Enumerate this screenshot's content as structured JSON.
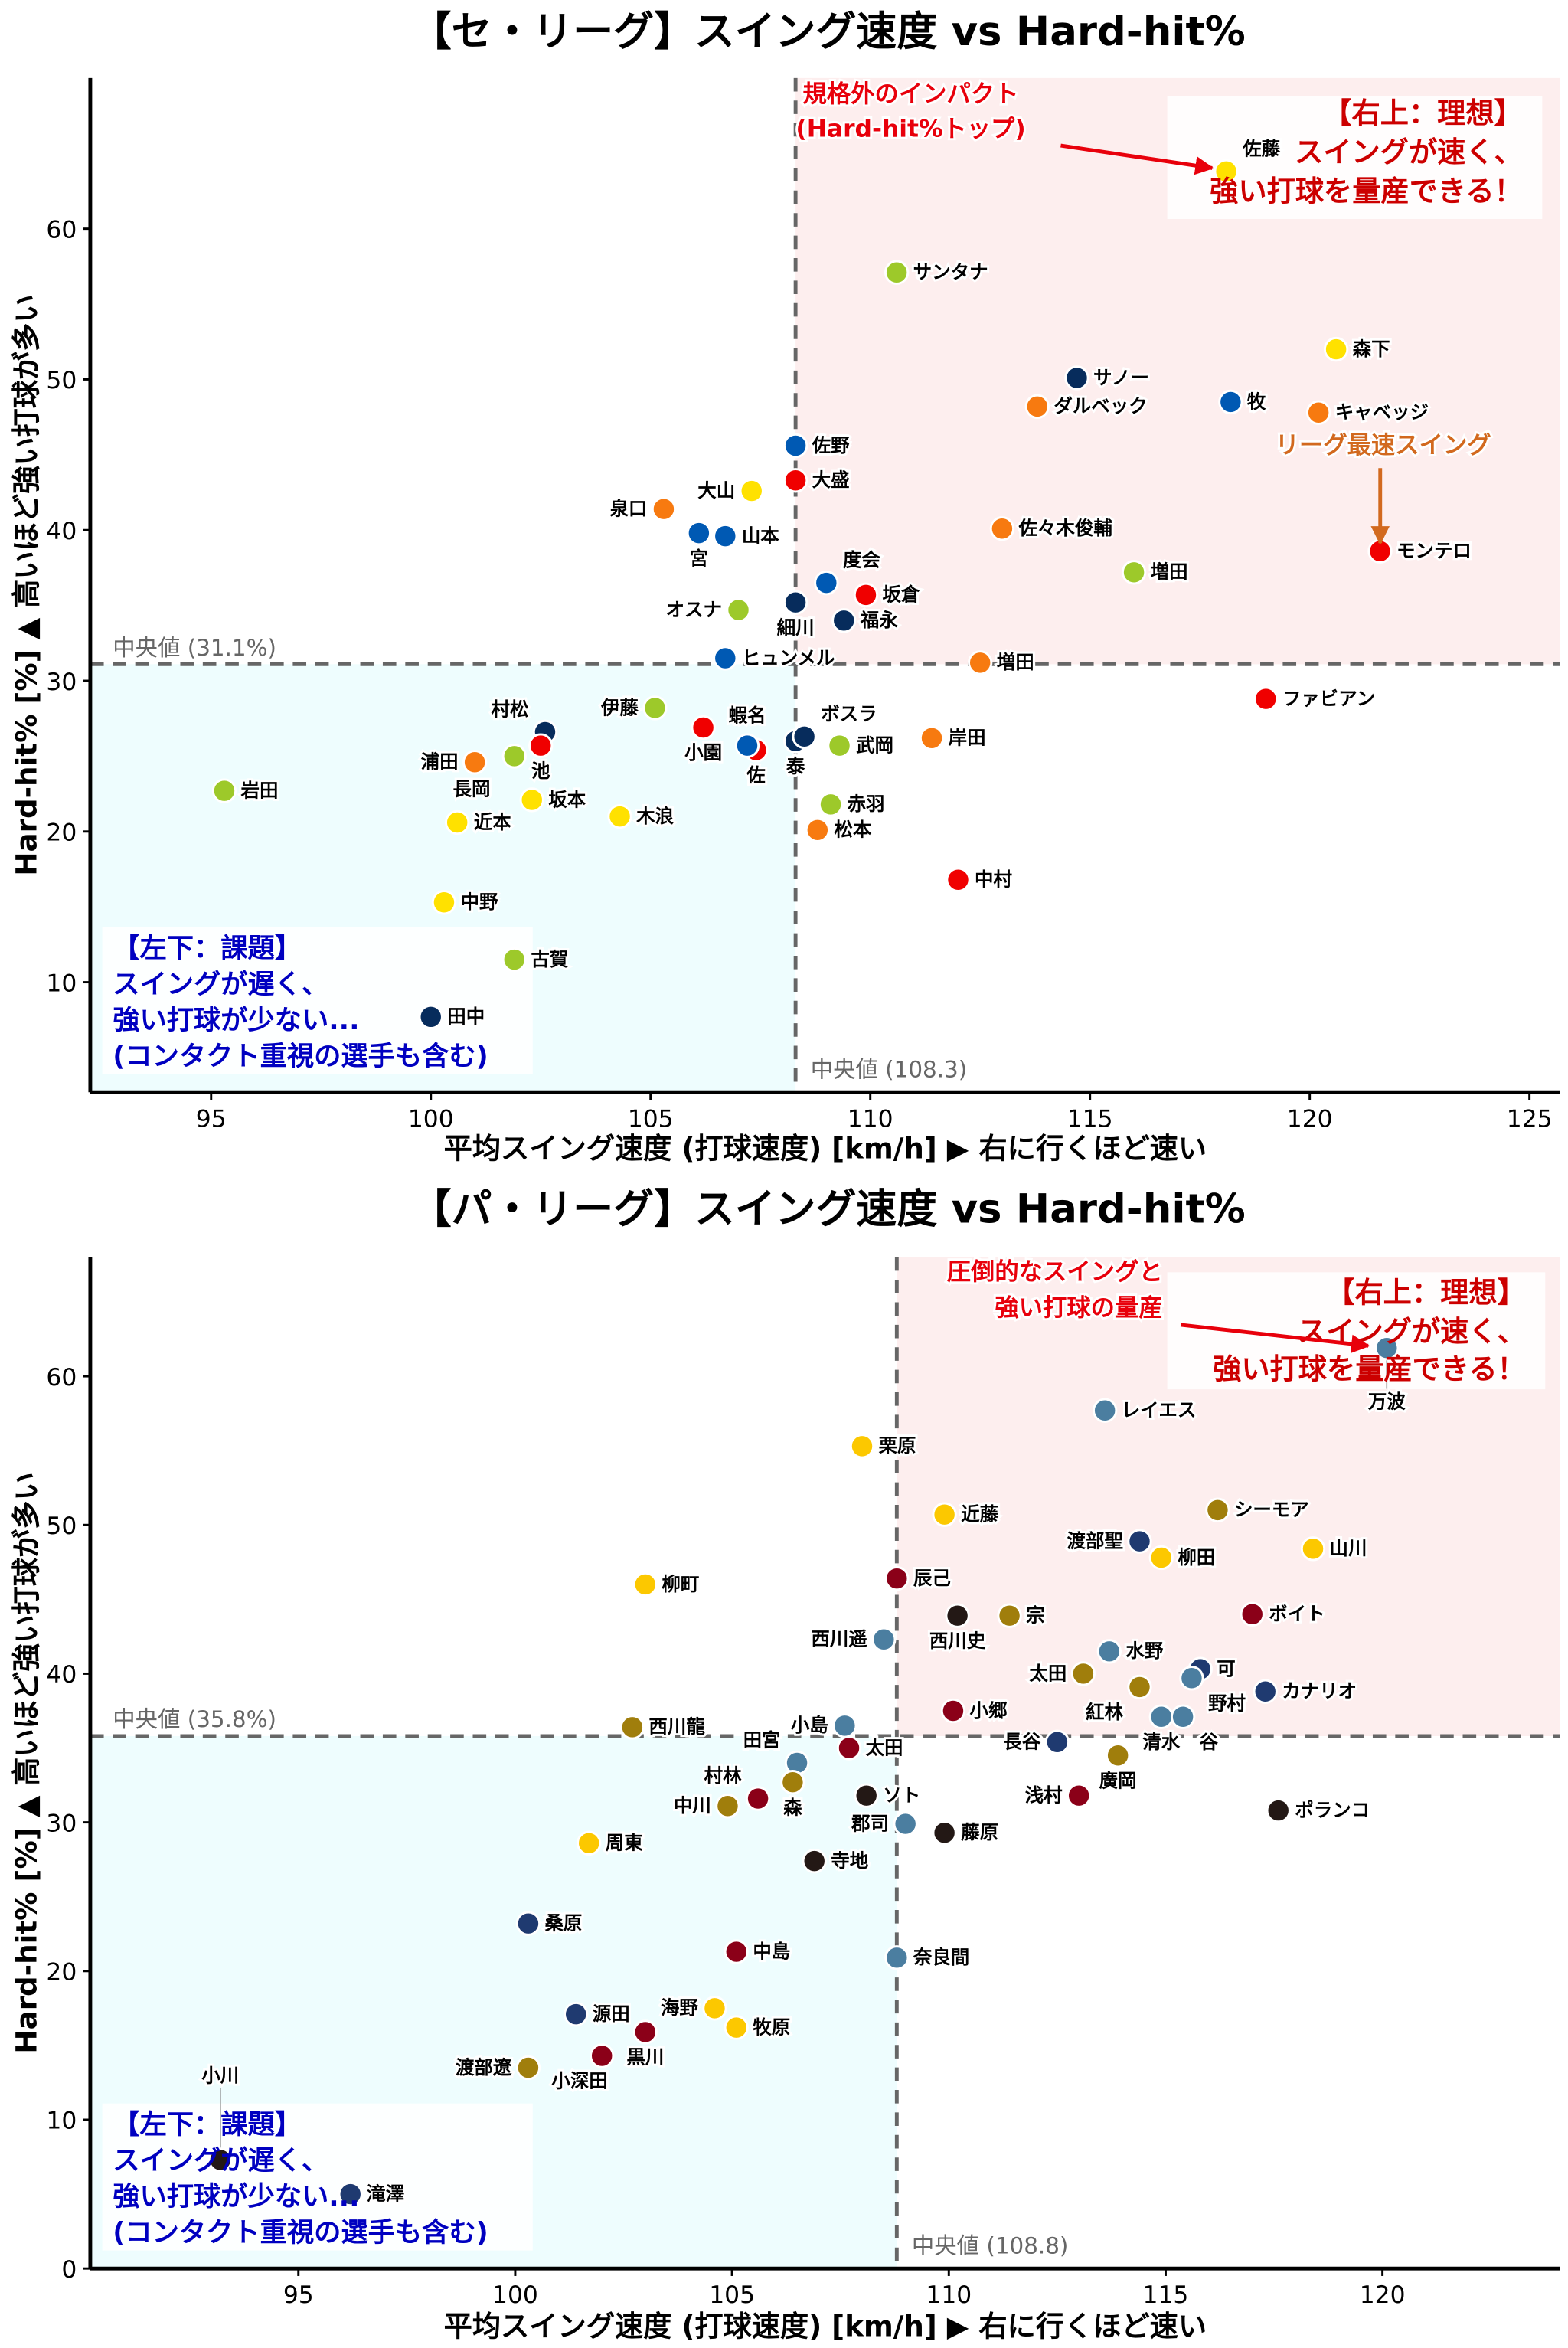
{
  "chart_data": [
    {
      "type": "scatter",
      "title": "【セ・リーグ】スイング速度 vs Hard-hit%",
      "xlabel": "平均スイング速度 (打球速度) [km/h] ▶ 右に行くほど速い",
      "ylabel": "Hard-hit% [%] ▲ 高いほど強い打球が多い",
      "xlim": [
        92.25,
        125.7
      ],
      "ylim": [
        2.7,
        70
      ],
      "xticks": [
        "95",
        "100",
        "105",
        "110",
        "115",
        "120",
        "125"
      ],
      "yticks": [
        "10",
        "20",
        "30",
        "40",
        "50",
        "60"
      ],
      "grid": false,
      "median": {
        "x": 108.3,
        "y": 31.1,
        "x_label": "中央値 (108.3)",
        "y_label": "中央値 (31.1%)"
      },
      "quadrant_colors": {
        "upper_right": "#fdeeee",
        "lower_left": "#eefdfe"
      },
      "ideal_box": [
        "【右上：理想】",
        "スイングが速く、",
        "強い打球を量産できる！"
      ],
      "issue_box": [
        "【左下：課題】",
        "スイングが遅く、",
        "強い打球が少ない...",
        "(コンタクト重視の選手も含む)"
      ],
      "callouts": [
        {
          "lines": [
            "規格外のインパクト",
            "(Hard-hit%トップ)"
          ],
          "color": "#e8000b"
        },
        {
          "lines": [
            "リーグ最速スイング"
          ],
          "color": "#d2691e"
        }
      ],
      "palette": {
        "Y": "#ffe100",
        "G": "#9dc92a",
        "N": "#072c5c",
        "B": "#0059b3",
        "O": "#f77a10",
        "R": "#f00000"
      },
      "points": [
        {
          "name": "佐藤",
          "x": 118.1,
          "y": 63.8,
          "c": "Y"
        },
        {
          "name": "サンタナ",
          "x": 110.6,
          "y": 57.1,
          "c": "G"
        },
        {
          "name": "森下",
          "x": 120.6,
          "y": 52.0,
          "c": "Y"
        },
        {
          "name": "サノー",
          "x": 114.7,
          "y": 50.1,
          "c": "N"
        },
        {
          "name": "ダルベック",
          "x": 113.8,
          "y": 48.2,
          "c": "O"
        },
        {
          "name": "牧",
          "x": 118.2,
          "y": 48.5,
          "c": "B"
        },
        {
          "name": "キャベッジ",
          "x": 120.2,
          "y": 47.8,
          "c": "O"
        },
        {
          "name": "佐野",
          "x": 108.3,
          "y": 45.6,
          "c": "B"
        },
        {
          "name": "大盛",
          "x": 108.3,
          "y": 43.3,
          "c": "R"
        },
        {
          "name": "大山",
          "x": 107.3,
          "y": 42.6,
          "c": "Y"
        },
        {
          "name": "泉口",
          "x": 105.3,
          "y": 41.4,
          "c": "O"
        },
        {
          "name": "宮",
          "x": 106.1,
          "y": 39.8,
          "c": "B"
        },
        {
          "name": "山本",
          "x": 106.7,
          "y": 39.6,
          "c": "B"
        },
        {
          "name": "佐々木俊輔",
          "x": 113.0,
          "y": 40.1,
          "c": "O"
        },
        {
          "name": "モンテロ",
          "x": 121.6,
          "y": 38.6,
          "c": "R"
        },
        {
          "name": "増田",
          "x": 116.0,
          "y": 37.2,
          "c": "G"
        },
        {
          "name": "度会",
          "x": 109.0,
          "y": 36.5,
          "c": "B"
        },
        {
          "name": "坂倉",
          "x": 109.9,
          "y": 35.7,
          "c": "R"
        },
        {
          "name": "細川",
          "x": 108.3,
          "y": 35.2,
          "c": "N"
        },
        {
          "name": "福永",
          "x": 109.4,
          "y": 34.0,
          "c": "N"
        },
        {
          "name": "オスナ",
          "x": 107.0,
          "y": 34.7,
          "c": "G"
        },
        {
          "name": "ヒュンメル",
          "x": 106.7,
          "y": 31.5,
          "c": "B"
        },
        {
          "name": "増田",
          "x": 112.5,
          "y": 31.2,
          "c": "O"
        },
        {
          "name": "ファビアン",
          "x": 119.0,
          "y": 28.8,
          "c": "R"
        },
        {
          "name": "伊藤",
          "x": 105.1,
          "y": 28.2,
          "c": "G"
        },
        {
          "name": "小園",
          "x": 106.2,
          "y": 26.9,
          "c": "R"
        },
        {
          "name": "佐",
          "x": 107.4,
          "y": 25.4,
          "c": "R"
        },
        {
          "name": "蝦名",
          "x": 107.2,
          "y": 25.7,
          "c": "B"
        },
        {
          "name": "泰",
          "x": 108.3,
          "y": 26.0,
          "c": "N"
        },
        {
          "name": "ボスラ",
          "x": 108.5,
          "y": 26.3,
          "c": "N"
        },
        {
          "name": "武岡",
          "x": 109.3,
          "y": 25.7,
          "c": "G"
        },
        {
          "name": "岸田",
          "x": 111.4,
          "y": 26.2,
          "c": "O"
        },
        {
          "name": "赤羽",
          "x": 109.1,
          "y": 21.8,
          "c": "G"
        },
        {
          "name": "松本",
          "x": 108.8,
          "y": 20.1,
          "c": "O"
        },
        {
          "name": "中村",
          "x": 112.0,
          "y": 16.8,
          "c": "R"
        },
        {
          "name": "村松",
          "x": 102.6,
          "y": 26.6,
          "c": "N"
        },
        {
          "name": "池",
          "x": 102.5,
          "y": 25.7,
          "c": "R"
        },
        {
          "name": "長岡",
          "x": 101.9,
          "y": 25.0,
          "c": "G"
        },
        {
          "name": "浦田",
          "x": 101.0,
          "y": 24.6,
          "c": "O"
        },
        {
          "name": "岩田",
          "x": 95.3,
          "y": 22.7,
          "c": "G"
        },
        {
          "name": "坂本",
          "x": 102.3,
          "y": 22.1,
          "c": "Y"
        },
        {
          "name": "近本",
          "x": 100.6,
          "y": 20.6,
          "c": "Y"
        },
        {
          "name": "木浪",
          "x": 104.3,
          "y": 21.0,
          "c": "Y"
        },
        {
          "name": "中野",
          "x": 100.3,
          "y": 15.3,
          "c": "Y"
        },
        {
          "name": "古賀",
          "x": 101.9,
          "y": 11.5,
          "c": "G"
        },
        {
          "name": "田中",
          "x": 100.0,
          "y": 7.7,
          "c": "N"
        }
      ]
    },
    {
      "type": "scatter",
      "title": "【パ・リーグ】スイング速度 vs Hard-hit%",
      "xlabel": "平均スイング速度 (打球速度) [km/h] ▶ 右に行くほど速い",
      "ylabel": "Hard-hit% [%] ▲ 高いほど強い打球が多い",
      "xlim": [
        90.2,
        124.1
      ],
      "ylim": [
        0,
        68
      ],
      "xticks": [
        "95",
        "100",
        "105",
        "110",
        "115",
        "120"
      ],
      "yticks": [
        "0",
        "10",
        "20",
        "30",
        "40",
        "50",
        "60"
      ],
      "grid": false,
      "median": {
        "x": 108.8,
        "y": 35.8,
        "x_label": "中央値 (108.8)",
        "y_label": "中央値 (35.8%)"
      },
      "quadrant_colors": {
        "upper_right": "#fdeeee",
        "lower_left": "#eefdfe"
      },
      "ideal_box": [
        "【右上：理想】",
        "スイングが速く、",
        "強い打球を量産できる！"
      ],
      "issue_box": [
        "【左下：課題】",
        "スイングが遅く、",
        "強い打球が少ない...",
        "(コンタクト重視の選手も含む)"
      ],
      "callouts": [
        {
          "lines": [
            "圧倒的なスイングと",
            "強い打球の量産"
          ],
          "color": "#e8000b"
        }
      ],
      "palette": {
        "S": "#4b7ea0",
        "N": "#1f3a70",
        "R": "#8b0018",
        "O": "#a07e0c",
        "K": "#231815",
        "Y": "#fcc800"
      },
      "points": [
        {
          "name": "万波",
          "x": 120.1,
          "y": 61.9,
          "c": "S"
        },
        {
          "name": "レイエス",
          "x": 113.6,
          "y": 57.7,
          "c": "S"
        },
        {
          "name": "栗原",
          "x": 108.0,
          "y": 55.3,
          "c": "Y"
        },
        {
          "name": "近藤",
          "x": 109.9,
          "y": 50.7,
          "c": "Y"
        },
        {
          "name": "シーモア",
          "x": 116.2,
          "y": 51.0,
          "c": "O"
        },
        {
          "name": "山川",
          "x": 118.4,
          "y": 48.4,
          "c": "Y"
        },
        {
          "name": "渡部聖",
          "x": 114.4,
          "y": 48.9,
          "c": "N"
        },
        {
          "name": "柳田",
          "x": 114.9,
          "y": 47.8,
          "c": "Y"
        },
        {
          "name": "柳町",
          "x": 103.0,
          "y": 46.0,
          "c": "Y"
        },
        {
          "name": "辰己",
          "x": 108.8,
          "y": 46.4,
          "c": "R"
        },
        {
          "name": "西川史",
          "x": 110.2,
          "y": 43.9,
          "c": "K"
        },
        {
          "name": "宗",
          "x": 111.4,
          "y": 43.9,
          "c": "O"
        },
        {
          "name": "ボイト",
          "x": 117.0,
          "y": 44.0,
          "c": "R"
        },
        {
          "name": "西川遥",
          "x": 108.5,
          "y": 42.3,
          "c": "S"
        },
        {
          "name": "水野",
          "x": 113.7,
          "y": 41.5,
          "c": "S"
        },
        {
          "name": "太田",
          "x": 113.1,
          "y": 40.0,
          "c": "O"
        },
        {
          "name": "紅林",
          "x": 114.4,
          "y": 39.1,
          "c": "O"
        },
        {
          "name": "可",
          "x": 115.8,
          "y": 40.3,
          "c": "N"
        },
        {
          "name": "野村",
          "x": 115.6,
          "y": 39.7,
          "c": "S"
        },
        {
          "name": "カナリオ",
          "x": 117.3,
          "y": 38.8,
          "c": "N"
        },
        {
          "name": "清水",
          "x": 114.9,
          "y": 37.1,
          "c": "S"
        },
        {
          "name": "谷",
          "x": 115.4,
          "y": 37.1,
          "c": "S"
        },
        {
          "name": "長谷",
          "x": 112.5,
          "y": 35.4,
          "c": "N"
        },
        {
          "name": "廣岡",
          "x": 113.9,
          "y": 34.5,
          "c": "O"
        },
        {
          "name": "浅村",
          "x": 113.0,
          "y": 31.8,
          "c": "R"
        },
        {
          "name": "ポランコ",
          "x": 117.6,
          "y": 30.8,
          "c": "K"
        },
        {
          "name": "小郷",
          "x": 110.1,
          "y": 37.5,
          "c": "R"
        },
        {
          "name": "小島",
          "x": 107.6,
          "y": 36.5,
          "c": "S"
        },
        {
          "name": "太田",
          "x": 107.7,
          "y": 35.0,
          "c": "R"
        },
        {
          "name": "田宮",
          "x": 106.5,
          "y": 34.0,
          "c": "S"
        },
        {
          "name": "森",
          "x": 106.4,
          "y": 32.7,
          "c": "O"
        },
        {
          "name": "中川",
          "x": 104.9,
          "y": 31.1,
          "c": "O"
        },
        {
          "name": "村林",
          "x": 105.6,
          "y": 31.6,
          "c": "R"
        },
        {
          "name": "ソト",
          "x": 108.1,
          "y": 31.8,
          "c": "K"
        },
        {
          "name": "郡司",
          "x": 109.0,
          "y": 29.9,
          "c": "S"
        },
        {
          "name": "藤原",
          "x": 109.9,
          "y": 29.3,
          "c": "K"
        },
        {
          "name": "寺地",
          "x": 106.9,
          "y": 27.4,
          "c": "K"
        },
        {
          "name": "周東",
          "x": 101.7,
          "y": 28.6,
          "c": "Y"
        },
        {
          "name": "西川龍",
          "x": 102.7,
          "y": 36.4,
          "c": "O"
        },
        {
          "name": "桑原",
          "x": 100.3,
          "y": 23.2,
          "c": "N"
        },
        {
          "name": "中島",
          "x": 105.1,
          "y": 21.3,
          "c": "R"
        },
        {
          "name": "奈良間",
          "x": 108.8,
          "y": 20.9,
          "c": "S"
        },
        {
          "name": "海野",
          "x": 104.6,
          "y": 17.5,
          "c": "Y"
        },
        {
          "name": "牧原",
          "x": 105.1,
          "y": 16.2,
          "c": "Y"
        },
        {
          "name": "源田",
          "x": 101.4,
          "y": 17.1,
          "c": "N"
        },
        {
          "name": "黒川",
          "x": 103.0,
          "y": 15.9,
          "c": "R"
        },
        {
          "name": "小深田",
          "x": 102.0,
          "y": 14.3,
          "c": "R"
        },
        {
          "name": "渡部遼",
          "x": 100.3,
          "y": 13.5,
          "c": "O"
        },
        {
          "name": "小川",
          "x": 93.2,
          "y": 7.3,
          "c": "K"
        },
        {
          "name": "滝澤",
          "x": 96.2,
          "y": 5.0,
          "c": "N"
        }
      ]
    }
  ]
}
